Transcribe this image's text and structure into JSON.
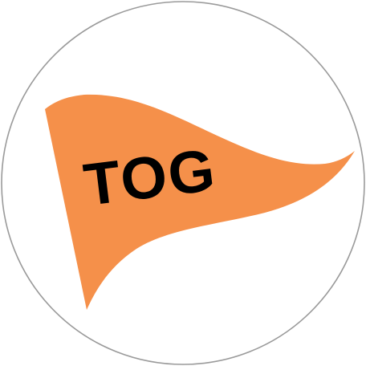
{
  "logo": {
    "text": "TOG",
    "colors": {
      "pennant": "#f5904a",
      "text": "#000000",
      "ring": "#9a9a9a",
      "background": "#ffffff"
    }
  }
}
